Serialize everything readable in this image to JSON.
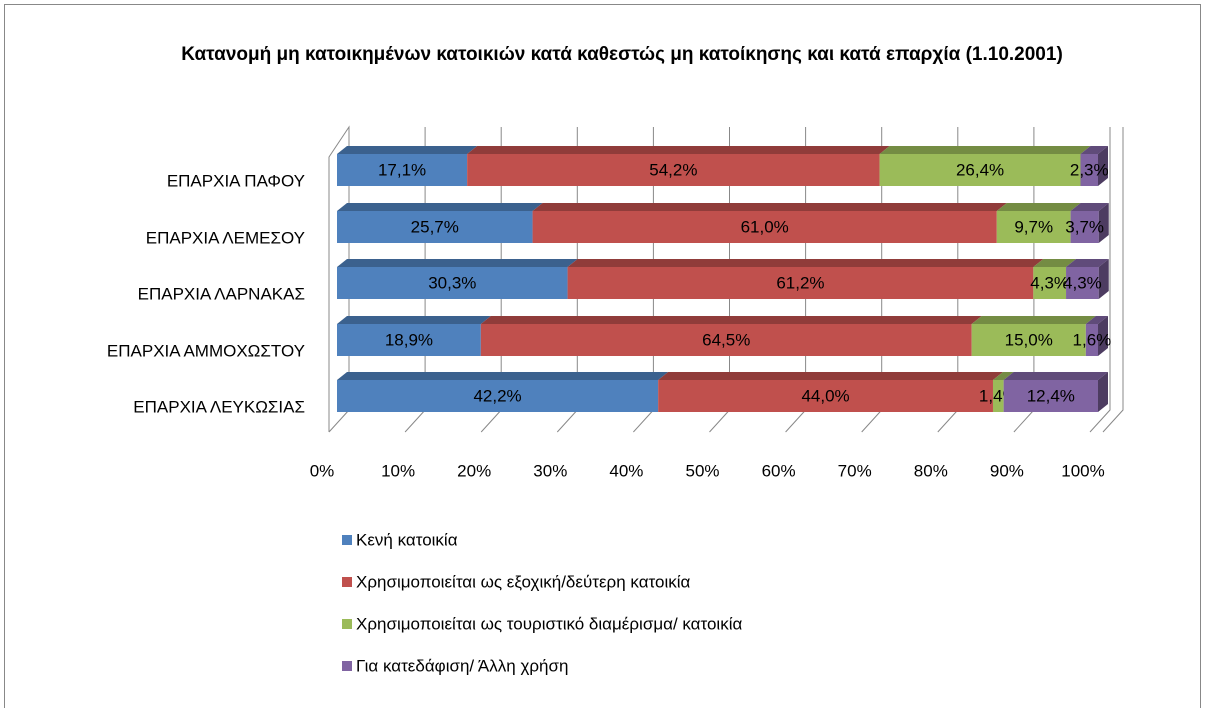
{
  "chart_data": {
    "type": "stacked-bar-horizontal-3d",
    "title": "Κατανομή μη κατοικημένων κατοικιών κατά καθεστώς μη κατοίκησης και κατά επαρχία (1.10.2001)",
    "categories": [
      "ΕΠΑΡΧΙΑ ΠΑΦΟΥ",
      "ΕΠΑΡΧΙΑ ΛΕΜΕΣΟΥ",
      "ΕΠΑΡΧΙΑ ΛΑΡΝΑΚΑΣ",
      "ΕΠΑΡΧΙΑ ΑΜΜΟΧΩΣΤΟΥ",
      "ΕΠΑΡΧΙΑ ΛΕΥΚΩΣΙΑΣ"
    ],
    "series": [
      {
        "name": "Κενή κατοικία",
        "color": "#4f81bd",
        "values": [
          17.1,
          25.7,
          30.3,
          18.9,
          42.2
        ],
        "value_labels": [
          "17,1%",
          "25,7%",
          "30,3%",
          "18,9%",
          "42,2%"
        ]
      },
      {
        "name": "Χρησιμοποιείται ως εξοχική/δεύτερη κατοικία",
        "color": "#c0504d",
        "values": [
          54.2,
          61.0,
          61.2,
          64.5,
          44.0
        ],
        "value_labels": [
          "54,2%",
          "61,0%",
          "61,2%",
          "64,5%",
          "44,0%"
        ]
      },
      {
        "name": "Χρησιμοποιείται ως τουριστικό διαμέρισμα/ κατοικία",
        "color": "#9bbb59",
        "values": [
          26.4,
          9.7,
          4.3,
          15.0,
          1.4
        ],
        "value_labels": [
          "26,4%",
          "9,7%",
          "4,3%",
          "15,0%",
          "1,4%"
        ]
      },
      {
        "name": "Για κατεδάφιση/ Άλλη χρήση",
        "color": "#8064a2",
        "values": [
          2.3,
          3.7,
          4.3,
          1.6,
          12.4
        ],
        "value_labels": [
          "2,3%",
          "3,7%",
          "4,3%",
          "1,6%",
          "12,4%"
        ]
      }
    ],
    "xlim": [
      0,
      100
    ],
    "xticks": [
      {
        "value": 0,
        "label": "0%"
      },
      {
        "value": 10,
        "label": "10%"
      },
      {
        "value": 20,
        "label": "20%"
      },
      {
        "value": 30,
        "label": "30%"
      },
      {
        "value": 40,
        "label": "40%"
      },
      {
        "value": 50,
        "label": "50%"
      },
      {
        "value": 60,
        "label": "60%"
      },
      {
        "value": 70,
        "label": "70%"
      },
      {
        "value": 80,
        "label": "80%"
      },
      {
        "value": 90,
        "label": "90%"
      },
      {
        "value": 100,
        "label": "100%"
      }
    ],
    "grid": true,
    "legend": "bottom"
  }
}
